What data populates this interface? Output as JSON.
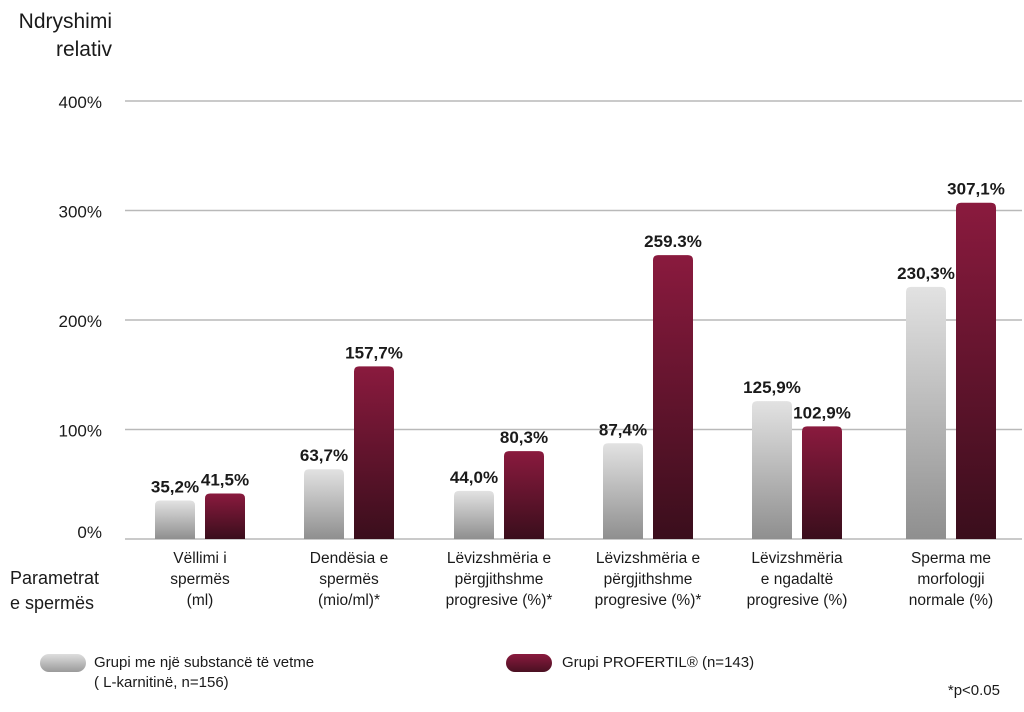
{
  "chart_data": {
    "type": "bar",
    "ylabel": "Ndryshimi\nrelativ",
    "xlabel": "Parametrat\ne spermës",
    "ylim": [
      0,
      400
    ],
    "yticks": [
      0,
      100,
      200,
      300,
      400
    ],
    "ytick_labels": [
      "0%",
      "100%",
      "200%",
      "300%",
      "400%"
    ],
    "grid": true,
    "categories": [
      "Vëllimi i\nspermës\n(ml)",
      "Dendësia e\nspermës\n(mio/ml)*",
      "Lëvizshmëria e\npërgjithshme\nprogresive (%)*",
      "Lëvizshmëria e\npërgjithshme\nprogresive (%)*",
      "Lëvizshmëria\ne ngadaltë\nprogresive (%)",
      "Sperma me\nmorfologji\nnormale (%)"
    ],
    "series": [
      {
        "name": "Grupi me një substancë të vetme\n( L-karnitinë, n=156)",
        "color": "#c4c4c4",
        "values": [
          35.2,
          63.7,
          44.0,
          87.4,
          125.9,
          230.3
        ],
        "labels": [
          "35,2%",
          "63,7%",
          "44,0%",
          "87,4%",
          "125,9%",
          "230,3%"
        ]
      },
      {
        "name": "Grupi PROFERTIL® (n=143)",
        "color": "#7a1535",
        "values": [
          41.5,
          157.7,
          80.3,
          259.3,
          102.9,
          307.1
        ],
        "labels": [
          "41,5%",
          "157,7%",
          "80,3%",
          "259.3%",
          "102,9%",
          "307,1%"
        ]
      }
    ],
    "legend_placement": "bottom",
    "footnote": "*p<0.05"
  }
}
